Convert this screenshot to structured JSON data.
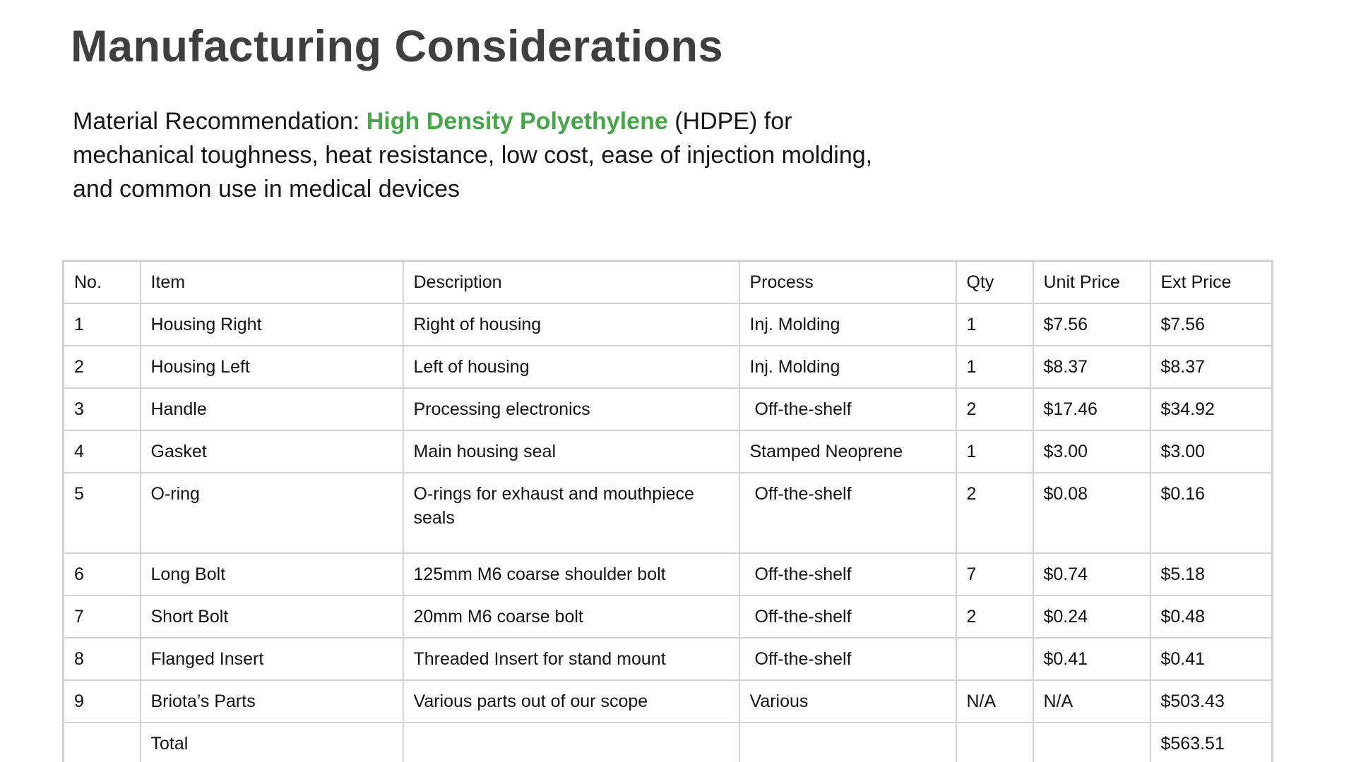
{
  "slide": {
    "title": "Manufacturing Considerations",
    "paragraph": {
      "lead": "Material Recommendation: ",
      "highlight": "High Density Polyethylene",
      "after_highlight": " (HDPE) for",
      "line2": "mechanical toughness, heat resistance, low cost, ease of injection molding,",
      "line3": "and common use in medical devices"
    },
    "colors": {
      "title_gray": "#3f3f3f",
      "highlight_green": "#48a64a",
      "table_border": "#d2d2d2",
      "body_text": "#161616"
    }
  },
  "table": {
    "headers": [
      "No.",
      "Item",
      "Description",
      "Process",
      "Qty",
      "Unit Price",
      "Ext Price"
    ],
    "rows": [
      [
        "1",
        "Housing Right",
        "Right of housing",
        "Inj. Molding",
        "1",
        "$7.56",
        "$7.56"
      ],
      [
        "2",
        "Housing Left",
        "Left of housing",
        "Inj. Molding",
        "1",
        "$8.37",
        "$8.37"
      ],
      [
        "3",
        "Handle",
        "Processing electronics",
        " Off-the-shelf",
        "2",
        "$17.46",
        "$34.92"
      ],
      [
        "4",
        "Gasket",
        "Main housing seal",
        "Stamped Neoprene",
        "1",
        "$3.00",
        "$3.00"
      ],
      [
        "5",
        "O-ring",
        "O-rings for exhaust and mouthpiece\nseals",
        " Off-the-shelf",
        "2",
        "$0.08",
        "$0.16"
      ],
      [
        "6",
        "Long Bolt",
        "125mm M6 coarse shoulder bolt",
        " Off-the-shelf",
        "7",
        "$0.74",
        "$5.18"
      ],
      [
        "7",
        "Short Bolt",
        "20mm M6 coarse bolt",
        " Off-the-shelf",
        "2",
        "$0.24",
        "$0.48"
      ],
      [
        "8",
        "Flanged Insert",
        "Threaded Insert for stand mount",
        " Off-the-shelf",
        "",
        "$0.41",
        "$0.41"
      ],
      [
        "9",
        "Briota’s Parts",
        "Various parts out of our scope",
        "Various",
        "N/A",
        "N/A",
        "$503.43"
      ],
      [
        "",
        "Total",
        "",
        "",
        "",
        "",
        "$563.51"
      ]
    ]
  }
}
